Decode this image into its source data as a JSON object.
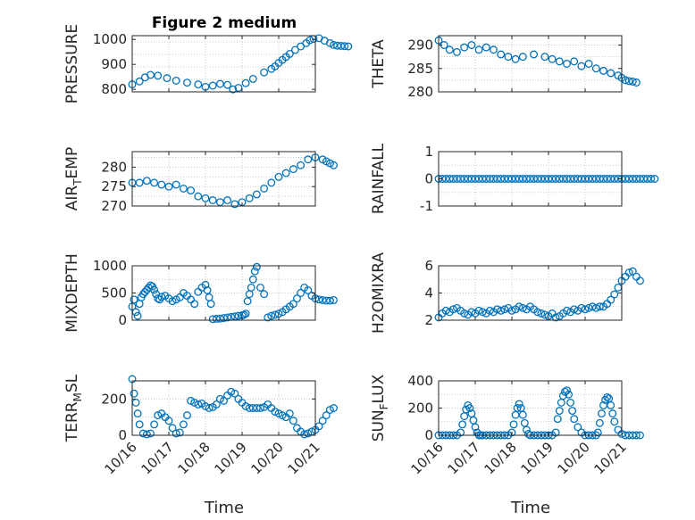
{
  "figure": {
    "title": "Figure 2 medium",
    "xlabel": "Time",
    "date_ticks": [
      "10/16",
      "10/17",
      "10/18",
      "10/19",
      "10/20",
      "10/21"
    ],
    "marker_color": "#0072BD"
  },
  "chart_data": [
    {
      "type": "scatter",
      "marker": "circle",
      "title": "Figure 2 medium",
      "ylabel": "PRESSURE",
      "ylim": [
        790,
        1015
      ],
      "yticks": [
        {
          "v": 800,
          "label": "800"
        },
        {
          "v": 900,
          "label": "900"
        },
        {
          "v": 1000,
          "label": "1000"
        }
      ],
      "xticks": [],
      "xlabel": "",
      "grid": true,
      "series": [
        {
          "kx": [
            0,
            0.2,
            0.35,
            0.5,
            0.7,
            0.95,
            1.2,
            1.5,
            1.8,
            2.0,
            2.2,
            2.4,
            2.6,
            2.75,
            2.9,
            3.1,
            3.3,
            3.6,
            3.8,
            3.9,
            4.0,
            4.1,
            4.2,
            4.3,
            4.45,
            4.6,
            4.75,
            4.85,
            4.95,
            5.1,
            5.25,
            5.4,
            5.5,
            5.6,
            5.7,
            5.8,
            5.9
          ],
          "ky": [
            820,
            832,
            848,
            858,
            855,
            845,
            835,
            827,
            820,
            810,
            815,
            822,
            818,
            800,
            806,
            825,
            842,
            868,
            882,
            892,
            906,
            918,
            930,
            942,
            958,
            972,
            985,
            997,
            1002,
            1005,
            995,
            985,
            978,
            975,
            974,
            973,
            972
          ]
        }
      ]
    },
    {
      "type": "scatter",
      "marker": "circle",
      "title": "",
      "ylabel": "THETA",
      "ylim": [
        280,
        292
      ],
      "yticks": [
        {
          "v": 280,
          "label": "280"
        },
        {
          "v": 285,
          "label": "285"
        },
        {
          "v": 290,
          "label": "290"
        }
      ],
      "xticks": [],
      "xlabel": "",
      "grid": true,
      "series": [
        {
          "kx": [
            0,
            0.15,
            0.3,
            0.5,
            0.7,
            0.9,
            1.1,
            1.3,
            1.5,
            1.7,
            1.9,
            2.1,
            2.3,
            2.6,
            2.9,
            3.1,
            3.3,
            3.5,
            3.7,
            3.9,
            4.1,
            4.3,
            4.5,
            4.7,
            4.9,
            5.0,
            5.1,
            5.2,
            5.3,
            5.4
          ],
          "ky": [
            291,
            290,
            289,
            288.5,
            289.5,
            290,
            289,
            289.5,
            289,
            288,
            287.5,
            287,
            287.5,
            288,
            287.5,
            287,
            286.5,
            286,
            286.5,
            285.5,
            286,
            285,
            284.5,
            284,
            283.5,
            283,
            282.5,
            282.3,
            282.2,
            282
          ]
        }
      ]
    },
    {
      "type": "scatter",
      "marker": "circle",
      "title": "",
      "ylabel": "AIR_TEMP",
      "ylim": [
        270,
        284
      ],
      "yticks": [
        {
          "v": 270,
          "label": "270"
        },
        {
          "v": 275,
          "label": "275"
        },
        {
          "v": 280,
          "label": "280"
        }
      ],
      "xticks": [],
      "xlabel": "",
      "grid": true,
      "series": [
        {
          "kx": [
            0,
            0.2,
            0.4,
            0.6,
            0.8,
            1.0,
            1.2,
            1.4,
            1.6,
            1.8,
            2.0,
            2.2,
            2.4,
            2.6,
            2.8,
            3.0,
            3.2,
            3.4,
            3.6,
            3.8,
            4.0,
            4.2,
            4.4,
            4.6,
            4.8,
            5.0,
            5.2,
            5.3,
            5.4,
            5.5
          ],
          "ky": [
            276,
            276,
            276.5,
            276,
            275.5,
            275,
            275.5,
            274.5,
            274,
            272.5,
            272,
            271.5,
            271,
            271.5,
            270.5,
            271,
            272,
            273,
            274.5,
            276,
            277.5,
            278.5,
            279.5,
            280.5,
            282,
            282.5,
            282,
            281.5,
            281,
            280.5
          ]
        }
      ]
    },
    {
      "type": "scatter",
      "marker": "circle",
      "title": "",
      "ylabel": "RAINFALL",
      "ylim": [
        -1,
        1
      ],
      "yticks": [
        {
          "v": -1,
          "label": "-1"
        },
        {
          "v": 0,
          "label": "0"
        },
        {
          "v": 1,
          "label": "1"
        }
      ],
      "xticks": [],
      "xlabel": "",
      "grid": true,
      "series": [
        {
          "kx_range": [
            0,
            5.9
          ],
          "ky": 0,
          "n": 60
        }
      ]
    },
    {
      "type": "scatter",
      "marker": "circle",
      "title": "",
      "ylabel": "MIXDEPTH",
      "ylim": [
        0,
        1000
      ],
      "yticks": [
        {
          "v": 0,
          "label": "0"
        },
        {
          "v": 500,
          "label": "500"
        },
        {
          "v": 1000,
          "label": "1000"
        }
      ],
      "xticks": [],
      "xlabel": "",
      "grid": true,
      "series": [
        {
          "kx": [
            0.0,
            0.05,
            0.1,
            0.15,
            0.2,
            0.25,
            0.3,
            0.35,
            0.4,
            0.45,
            0.5,
            0.55,
            0.6,
            0.65,
            0.7,
            0.75,
            0.8,
            0.9,
            1.0,
            1.1,
            1.2,
            1.3,
            1.4,
            1.5,
            1.6,
            1.7,
            1.8,
            1.9,
            2.0,
            2.05,
            2.1,
            2.15,
            2.2,
            2.3,
            2.4,
            2.5,
            2.6,
            2.7,
            2.8,
            2.9,
            3.0,
            3.05,
            3.1,
            3.15,
            3.2,
            3.25,
            3.3,
            3.35,
            3.4,
            3.5,
            3.6,
            3.7,
            3.8,
            3.9,
            4.0,
            4.1,
            4.2,
            4.3,
            4.4,
            4.5,
            4.6,
            4.7,
            4.8,
            4.9,
            5.0,
            5.1,
            5.2,
            5.3,
            5.4,
            5.5
          ],
          "ky": [
            250,
            380,
            150,
            80,
            300,
            420,
            480,
            520,
            560,
            600,
            640,
            620,
            560,
            480,
            400,
            380,
            430,
            450,
            400,
            350,
            380,
            420,
            500,
            450,
            380,
            300,
            520,
            600,
            650,
            550,
            420,
            300,
            20,
            25,
            30,
            40,
            50,
            60,
            70,
            80,
            90,
            100,
            120,
            350,
            480,
            600,
            750,
            900,
            980,
            600,
            480,
            50,
            80,
            100,
            120,
            150,
            200,
            250,
            300,
            400,
            500,
            600,
            550,
            450,
            400,
            380,
            370,
            360,
            360,
            370
          ]
        }
      ]
    },
    {
      "type": "scatter",
      "marker": "circle",
      "title": "",
      "ylabel": "H2OMIXRA",
      "ylim": [
        2,
        6
      ],
      "yticks": [
        {
          "v": 2,
          "label": "2"
        },
        {
          "v": 4,
          "label": "4"
        },
        {
          "v": 6,
          "label": "6"
        }
      ],
      "xticks": [],
      "xlabel": "",
      "grid": true,
      "series": [
        {
          "kx": [
            0.0,
            0.1,
            0.2,
            0.3,
            0.4,
            0.5,
            0.6,
            0.7,
            0.8,
            0.9,
            1.0,
            1.1,
            1.2,
            1.3,
            1.4,
            1.5,
            1.6,
            1.7,
            1.8,
            1.9,
            2.0,
            2.1,
            2.2,
            2.3,
            2.4,
            2.5,
            2.6,
            2.7,
            2.8,
            2.9,
            3.0,
            3.1,
            3.2,
            3.3,
            3.4,
            3.5,
            3.6,
            3.7,
            3.8,
            3.9,
            4.0,
            4.1,
            4.2,
            4.3,
            4.4,
            4.5,
            4.6,
            4.7,
            4.8,
            4.9,
            5.0,
            5.1,
            5.2,
            5.3,
            5.4,
            5.5
          ],
          "ky": [
            2.2,
            2.5,
            2.7,
            2.6,
            2.8,
            2.9,
            2.7,
            2.5,
            2.4,
            2.6,
            2.5,
            2.7,
            2.6,
            2.5,
            2.7,
            2.6,
            2.8,
            2.7,
            2.8,
            2.9,
            2.7,
            2.8,
            3.0,
            2.9,
            2.8,
            3.0,
            2.8,
            2.6,
            2.5,
            2.4,
            2.3,
            2.5,
            2.2,
            2.3,
            2.5,
            2.7,
            2.6,
            2.8,
            2.7,
            2.9,
            2.8,
            2.9,
            3.0,
            2.9,
            3.0,
            3.0,
            3.2,
            3.5,
            3.9,
            4.4,
            4.9,
            5.2,
            5.5,
            5.6,
            5.2,
            4.9
          ]
        }
      ]
    },
    {
      "type": "scatter",
      "marker": "circle",
      "title": "",
      "ylabel": "TERR_MSL",
      "ylim": [
        0,
        300
      ],
      "yticks": [
        {
          "v": 0,
          "label": "0"
        },
        {
          "v": 200,
          "label": "200"
        }
      ],
      "xticks": [
        "10/16",
        "10/17",
        "10/18",
        "10/19",
        "10/20",
        "10/21"
      ],
      "xlabel": "Time",
      "grid": true,
      "series": [
        {
          "kx": [
            0.0,
            0.05,
            0.1,
            0.15,
            0.2,
            0.3,
            0.4,
            0.5,
            0.6,
            0.7,
            0.8,
            0.9,
            1.0,
            1.1,
            1.2,
            1.3,
            1.4,
            1.5,
            1.6,
            1.7,
            1.8,
            1.9,
            2.0,
            2.1,
            2.2,
            2.3,
            2.4,
            2.5,
            2.6,
            2.7,
            2.8,
            2.9,
            3.0,
            3.1,
            3.2,
            3.3,
            3.4,
            3.5,
            3.6,
            3.7,
            3.8,
            3.9,
            4.0,
            4.1,
            4.2,
            4.3,
            4.4,
            4.5,
            4.6,
            4.7,
            4.8,
            4.9,
            5.0,
            5.1,
            5.2,
            5.3,
            5.4,
            5.5
          ],
          "ky": [
            310,
            230,
            180,
            120,
            60,
            10,
            5,
            10,
            60,
            110,
            120,
            100,
            80,
            40,
            10,
            15,
            60,
            110,
            190,
            180,
            170,
            175,
            160,
            150,
            155,
            170,
            200,
            190,
            220,
            240,
            230,
            200,
            180,
            160,
            150,
            150,
            150,
            150,
            155,
            170,
            150,
            130,
            120,
            110,
            100,
            120,
            80,
            40,
            20,
            5,
            10,
            20,
            30,
            50,
            80,
            110,
            140,
            150
          ]
        }
      ]
    },
    {
      "type": "scatter",
      "marker": "circle",
      "title": "",
      "ylabel": "SUN_FLUX",
      "ylim": [
        0,
        400
      ],
      "yticks": [
        {
          "v": 0,
          "label": "0"
        },
        {
          "v": 200,
          "label": "200"
        },
        {
          "v": 400,
          "label": "400"
        }
      ],
      "xticks": [
        "10/16",
        "10/17",
        "10/18",
        "10/19",
        "10/20",
        "10/21"
      ],
      "xlabel": "Time",
      "grid": true,
      "series": [
        {
          "kx": [
            0.0,
            0.1,
            0.2,
            0.3,
            0.4,
            0.5,
            0.6,
            0.65,
            0.7,
            0.75,
            0.8,
            0.85,
            0.9,
            0.95,
            1.0,
            1.05,
            1.1,
            1.15,
            1.2,
            1.3,
            1.4,
            1.5,
            1.6,
            1.7,
            1.8,
            1.9,
            2.0,
            2.05,
            2.1,
            2.15,
            2.2,
            2.25,
            2.3,
            2.35,
            2.4,
            2.45,
            2.5,
            2.6,
            2.7,
            2.8,
            2.9,
            3.0,
            3.1,
            3.2,
            3.25,
            3.3,
            3.35,
            3.4,
            3.45,
            3.5,
            3.55,
            3.6,
            3.65,
            3.7,
            3.8,
            3.9,
            4.0,
            4.1,
            4.2,
            4.3,
            4.35,
            4.4,
            4.45,
            4.5,
            4.55,
            4.6,
            4.65,
            4.7,
            4.75,
            4.8,
            4.9,
            5.0,
            5.1,
            5.2,
            5.3,
            5.4,
            5.5
          ],
          "ky": [
            0,
            0,
            0,
            0,
            0,
            0,
            20,
            80,
            140,
            190,
            220,
            200,
            160,
            110,
            60,
            20,
            0,
            0,
            0,
            0,
            0,
            0,
            0,
            0,
            0,
            0,
            20,
            80,
            150,
            200,
            230,
            200,
            150,
            90,
            40,
            10,
            0,
            0,
            0,
            0,
            0,
            0,
            0,
            20,
            120,
            180,
            240,
            290,
            320,
            330,
            300,
            240,
            180,
            120,
            60,
            20,
            0,
            0,
            0,
            0,
            20,
            90,
            160,
            220,
            260,
            280,
            270,
            220,
            160,
            100,
            40,
            10,
            0,
            0,
            0,
            0,
            0
          ]
        }
      ]
    }
  ]
}
